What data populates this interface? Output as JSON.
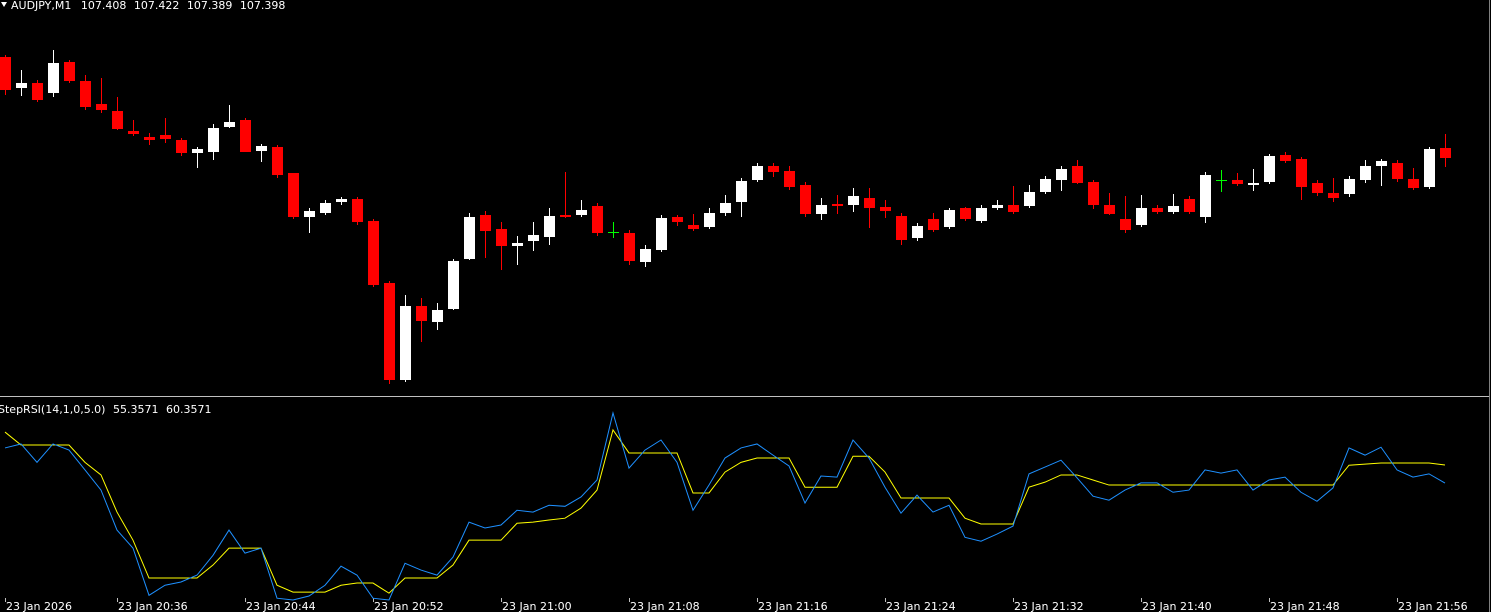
{
  "chart_data": [
    {
      "type": "candlestick",
      "title": "AUDJPY,M1",
      "categories": [
        "23 Jan 2026",
        null,
        null,
        null,
        null,
        null,
        null,
        "23 Jan 20:36",
        null,
        null,
        null,
        null,
        null,
        null,
        null,
        "23 Jan 20:44",
        null,
        null,
        null,
        null,
        null,
        null,
        null,
        "23 Jan 20:52",
        null,
        null,
        null,
        null,
        null,
        null,
        null,
        "23 Jan 21:00",
        null,
        null,
        null,
        null,
        null,
        null,
        null,
        "23 Jan 21:08",
        null,
        null,
        null,
        null,
        null,
        null,
        null,
        "23 Jan 21:16",
        null,
        null,
        null,
        null,
        null,
        null,
        null,
        "23 Jan 21:24",
        null,
        null,
        null,
        null,
        null,
        null,
        null,
        "23 Jan 21:32",
        null,
        null,
        null,
        null,
        null,
        null,
        null,
        "23 Jan 21:40",
        null,
        null,
        null,
        null,
        null,
        null,
        null,
        "23 Jan 21:48",
        null,
        null,
        null,
        null,
        null,
        null,
        null,
        "23 Jan 21:56",
        null,
        null,
        null
      ],
      "open": [
        107.499,
        107.468,
        107.473,
        107.463,
        107.494,
        107.475,
        107.452,
        107.445,
        107.425,
        107.419,
        107.421,
        107.416,
        107.403,
        107.404,
        107.429,
        107.436,
        107.405,
        107.409,
        107.383,
        107.339,
        107.343,
        107.354,
        107.357,
        107.335,
        107.273,
        107.176,
        107.25,
        107.234,
        107.247,
        107.297,
        107.341,
        107.327,
        107.31,
        107.315,
        107.319,
        107.341,
        107.341,
        107.35,
        107.324,
        107.323,
        107.294,
        107.306,
        107.339,
        107.331,
        107.329,
        107.343,
        107.354,
        107.376,
        107.39,
        107.385,
        107.371,
        107.342,
        107.352,
        107.351,
        107.358,
        107.349,
        107.34,
        107.318,
        107.337,
        107.329,
        107.348,
        107.335,
        107.348,
        107.351,
        107.35,
        107.364,
        107.376,
        107.39,
        107.374,
        107.351,
        107.337,
        107.331,
        107.348,
        107.344,
        107.357,
        107.339,
        107.376,
        107.376,
        107.371,
        107.374,
        107.401,
        107.397,
        107.373,
        107.363,
        107.362,
        107.376,
        107.39,
        107.393,
        107.377,
        107.369,
        107.408
      ],
      "high": [
        107.501,
        107.486,
        107.476,
        107.506,
        107.496,
        107.481,
        107.478,
        107.459,
        107.436,
        107.423,
        107.438,
        107.418,
        107.409,
        107.432,
        107.451,
        107.438,
        107.412,
        107.411,
        107.383,
        107.348,
        107.356,
        107.359,
        107.359,
        107.337,
        107.275,
        107.261,
        107.258,
        107.253,
        107.297,
        107.343,
        107.345,
        107.334,
        107.32,
        107.334,
        107.348,
        107.384,
        107.356,
        107.353,
        107.334,
        107.326,
        107.311,
        107.341,
        107.341,
        107.342,
        107.348,
        107.361,
        107.378,
        107.393,
        107.393,
        107.39,
        107.374,
        107.358,
        107.361,
        107.368,
        107.368,
        107.356,
        107.343,
        107.333,
        107.343,
        107.348,
        107.349,
        107.351,
        107.356,
        107.37,
        107.371,
        107.38,
        107.39,
        107.396,
        107.376,
        107.363,
        107.36,
        107.361,
        107.351,
        107.362,
        107.36,
        107.384,
        107.386,
        107.383,
        107.387,
        107.402,
        107.404,
        107.399,
        107.376,
        107.378,
        107.38,
        107.396,
        107.397,
        107.396,
        107.388,
        107.409,
        107.422
      ],
      "low": [
        107.461,
        107.46,
        107.454,
        107.459,
        107.473,
        107.446,
        107.443,
        107.426,
        107.42,
        107.411,
        107.413,
        107.4,
        107.388,
        107.396,
        107.428,
        107.404,
        107.394,
        107.378,
        107.337,
        107.323,
        107.341,
        107.351,
        107.331,
        107.269,
        107.172,
        107.174,
        107.214,
        107.226,
        107.246,
        107.296,
        107.298,
        107.286,
        107.291,
        107.305,
        107.311,
        107.338,
        107.339,
        107.32,
        107.318,
        107.291,
        107.289,
        107.304,
        107.33,
        107.325,
        107.327,
        107.34,
        107.339,
        107.374,
        107.379,
        107.366,
        107.339,
        107.336,
        107.342,
        107.344,
        107.328,
        107.338,
        107.311,
        107.315,
        107.324,
        107.327,
        107.335,
        107.333,
        107.346,
        107.342,
        107.348,
        107.362,
        107.365,
        107.372,
        107.347,
        107.341,
        107.323,
        107.329,
        107.342,
        107.342,
        107.342,
        107.333,
        107.364,
        107.37,
        107.365,
        107.372,
        107.393,
        107.356,
        107.36,
        107.354,
        107.359,
        107.373,
        107.37,
        107.374,
        107.366,
        107.367,
        107.389
      ],
      "close": [
        107.466,
        107.473,
        107.456,
        107.493,
        107.475,
        107.449,
        107.446,
        107.427,
        107.422,
        107.416,
        107.417,
        107.403,
        107.407,
        107.428,
        107.434,
        107.404,
        107.41,
        107.381,
        107.339,
        107.345,
        107.353,
        107.357,
        107.334,
        107.271,
        107.176,
        107.25,
        107.235,
        107.246,
        107.295,
        107.339,
        107.325,
        107.31,
        107.313,
        107.321,
        107.34,
        107.339,
        107.346,
        107.323,
        107.324,
        107.295,
        107.307,
        107.338,
        107.334,
        107.327,
        107.343,
        107.353,
        107.375,
        107.39,
        107.384,
        107.369,
        107.342,
        107.351,
        107.35,
        107.36,
        107.348,
        107.345,
        107.316,
        107.33,
        107.326,
        107.346,
        107.337,
        107.348,
        107.351,
        107.344,
        107.364,
        107.377,
        107.387,
        107.373,
        107.351,
        107.342,
        107.326,
        107.348,
        107.344,
        107.35,
        107.344,
        107.381,
        107.376,
        107.372,
        107.373,
        107.4,
        107.395,
        107.369,
        107.363,
        107.358,
        107.377,
        107.39,
        107.395,
        107.377,
        107.368,
        107.407,
        107.398
      ],
      "up_color": "#ffffff",
      "down_color": "#ff0000",
      "doji_color": "#00ff00",
      "ylim": [
        107.161,
        107.556
      ]
    },
    {
      "type": "line",
      "title": "StepRSI(14,1,0,5.0)",
      "series": [
        {
          "color": "#1e90ff",
          "values": [
            65.1,
            66.2,
            61.1,
            66.2,
            64.5,
            59.0,
            53.4,
            42.3,
            37.3,
            24.2,
            27.0,
            27.9,
            29.8,
            35.3,
            42.3,
            35.9,
            37.3,
            23.4,
            22.9,
            24.0,
            27.0,
            32.3,
            29.8,
            23.4,
            22.9,
            33.1,
            31.2,
            29.8,
            34.8,
            44.5,
            42.9,
            43.7,
            47.8,
            47.3,
            49.2,
            48.9,
            51.5,
            56.2,
            74.8,
            59.5,
            64.5,
            67.3,
            61.1,
            47.8,
            54.8,
            62.3,
            65.1,
            66.2,
            63.1,
            60.1,
            49.8,
            57.3,
            57.0,
            67.3,
            62.3,
            54.2,
            47.0,
            52.0,
            47.3,
            49.2,
            40.3,
            39.2,
            41.2,
            43.4,
            57.9,
            59.8,
            61.7,
            56.8,
            51.7,
            50.6,
            53.4,
            55.4,
            55.4,
            52.8,
            53.4,
            59.0,
            58.1,
            59.0,
            53.4,
            56.2,
            57.0,
            52.8,
            50.3,
            54.0,
            65.1,
            63.1,
            65.3,
            59.0,
            57.0,
            57.9,
            55.3571
          ]
        },
        {
          "color": "#ffff00",
          "values": [
            69.5,
            65.9,
            65.9,
            65.9,
            65.9,
            61.1,
            57.6,
            47.3,
            39.5,
            29.0,
            29.0,
            29.0,
            29.0,
            32.6,
            37.3,
            37.3,
            37.3,
            27.0,
            25.1,
            25.1,
            25.1,
            27.0,
            27.6,
            27.6,
            24.8,
            29.0,
            29.0,
            29.0,
            32.6,
            39.5,
            39.5,
            39.5,
            44.2,
            44.5,
            45.1,
            45.6,
            48.4,
            53.4,
            70.1,
            63.7,
            63.7,
            63.7,
            63.7,
            52.6,
            52.6,
            58.4,
            61.1,
            62.3,
            62.3,
            62.3,
            54.2,
            54.2,
            54.2,
            62.8,
            62.8,
            58.4,
            51.2,
            51.2,
            51.2,
            51.2,
            45.6,
            44.0,
            44.0,
            44.0,
            54.2,
            55.6,
            57.6,
            57.6,
            56.2,
            54.8,
            54.8,
            54.8,
            54.8,
            54.8,
            54.8,
            54.8,
            54.8,
            54.8,
            54.8,
            54.8,
            54.8,
            54.8,
            54.8,
            54.8,
            60.3,
            60.6,
            60.9,
            60.9,
            60.9,
            60.9,
            60.3571
          ]
        }
      ],
      "ylim": [
        22.9,
        78.4
      ]
    }
  ]
}
